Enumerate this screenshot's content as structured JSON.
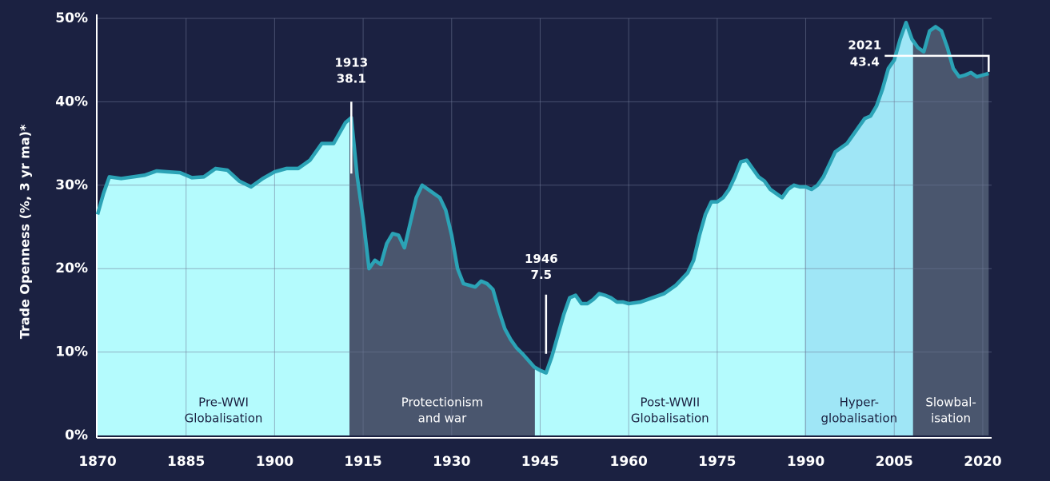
{
  "chart_data": {
    "type": "line",
    "y_label": "Trade Openness (%, 3 yr ma)*",
    "xlim": [
      1870,
      2021.5
    ],
    "ylim": [
      0,
      50
    ],
    "xticks": [
      1870,
      1885,
      1900,
      1915,
      1930,
      1945,
      1960,
      1975,
      1990,
      2005,
      2020
    ],
    "yticks": [
      {
        "value": 0,
        "label": "0%"
      },
      {
        "value": 10,
        "label": "10%"
      },
      {
        "value": 20,
        "label": "20%"
      },
      {
        "value": 30,
        "label": "30%"
      },
      {
        "value": 40,
        "label": "40%"
      },
      {
        "value": 50,
        "label": "50%"
      }
    ],
    "grid": true,
    "line_color": "#2ba3b6",
    "x": [
      1870,
      1871,
      1872,
      1874,
      1876,
      1878,
      1880,
      1882,
      1884,
      1886,
      1888,
      1890,
      1892,
      1894,
      1896,
      1898,
      1900,
      1902,
      1904,
      1906,
      1908,
      1910,
      1912,
      1913,
      1914,
      1915,
      1916,
      1917,
      1918,
      1919,
      1920,
      1921,
      1922,
      1923,
      1924,
      1925,
      1926,
      1927,
      1928,
      1929,
      1930,
      1931,
      1932,
      1933,
      1934,
      1935,
      1936,
      1937,
      1938,
      1939,
      1940,
      1941,
      1942,
      1943,
      1944,
      1945,
      1946,
      1947,
      1948,
      1949,
      1950,
      1951,
      1952,
      1953,
      1954,
      1955,
      1956,
      1957,
      1958,
      1959,
      1960,
      1962,
      1964,
      1966,
      1968,
      1970,
      1971,
      1972,
      1973,
      1974,
      1975,
      1976,
      1977,
      1978,
      1979,
      1980,
      1981,
      1982,
      1983,
      1984,
      1985,
      1986,
      1987,
      1988,
      1989,
      1990,
      1991,
      1992,
      1993,
      1994,
      1995,
      1996,
      1997,
      1998,
      1999,
      2000,
      2001,
      2002,
      2003,
      2004,
      2005,
      2006,
      2007,
      2008,
      2009,
      2010,
      2011,
      2012,
      2013,
      2014,
      2015,
      2016,
      2017,
      2018,
      2019,
      2020,
      2021
    ],
    "values": [
      26.5,
      29,
      31,
      30.8,
      31,
      31.2,
      31.7,
      31.6,
      31.5,
      30.9,
      31,
      32,
      31.8,
      30.5,
      29.8,
      30.8,
      31.6,
      32,
      32,
      33,
      35,
      35,
      37.5,
      38.1,
      31,
      26,
      20,
      21,
      20.5,
      23,
      24.2,
      24,
      22.5,
      25.5,
      28.5,
      30,
      29.5,
      29,
      28.5,
      27,
      24,
      20,
      18.2,
      18,
      17.8,
      18.5,
      18.2,
      17.5,
      15,
      12.8,
      11.5,
      10.5,
      9.8,
      9,
      8.2,
      7.8,
      7.5,
      9.5,
      12,
      14.5,
      16.5,
      16.8,
      15.8,
      15.8,
      16.3,
      17,
      16.8,
      16.5,
      16,
      16,
      15.8,
      16,
      16.5,
      17,
      18,
      19.5,
      21,
      24,
      26.5,
      28,
      28,
      28.5,
      29.5,
      31,
      32.8,
      33,
      32,
      31,
      30.5,
      29.5,
      29,
      28.5,
      29.5,
      30,
      29.8,
      29.8,
      29.5,
      30,
      31,
      32.5,
      34,
      34.5,
      35,
      36,
      37,
      38,
      38.3,
      39.5,
      41.5,
      44,
      45,
      47.5,
      49.5,
      47.5,
      46.5,
      46,
      48.5,
      49,
      48.5,
      46.5,
      44,
      43,
      43.2,
      43.5,
      43,
      43.2,
      43.4
    ],
    "regions": [
      {
        "label": [
          "Pre-WWI",
          "Globalisation"
        ],
        "start": 1870,
        "end": 1912.7,
        "color": "#b4fbfd"
      },
      {
        "label": [
          "Protectionism",
          "and war"
        ],
        "start": 1912.7,
        "end": 1944.1,
        "color": "#4a566e"
      },
      {
        "label": [
          "Post-WWII",
          "Globalisation"
        ],
        "start": 1944.1,
        "end": 1989.9,
        "color": "#b4fbfd"
      },
      {
        "label": [
          "Hyper-",
          "globalisation"
        ],
        "start": 1989.9,
        "end": 2008.2,
        "color": "#9fe6f6"
      },
      {
        "label": [
          "Slowbal-",
          "isation"
        ],
        "start": 2008.2,
        "end": 2021,
        "color": "#4a566e"
      }
    ],
    "annotations": [
      {
        "year": 1913,
        "value": 38.1
      },
      {
        "year": 1946,
        "value": 7.5
      },
      {
        "year": 2021,
        "value": 43.4
      }
    ]
  }
}
